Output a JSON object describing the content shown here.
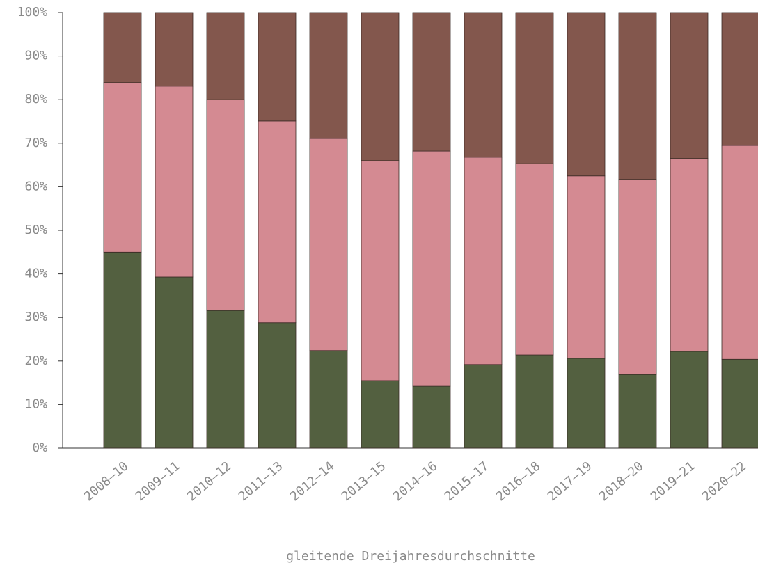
{
  "chart_data": {
    "type": "bar",
    "stacked": true,
    "x_label": "gleitende Dreijahresdurchschnitte",
    "categories": [
      "2008–10",
      "2009–11",
      "2010–12",
      "2011–13",
      "2012–14",
      "2013–15",
      "2014–16",
      "2015–17",
      "2016–18",
      "2017–19",
      "2018–20",
      "2019–21",
      "2020–22"
    ],
    "series": [
      {
        "color": "#536040",
        "values": [
          45.0,
          39.3,
          31.6,
          28.8,
          22.4,
          15.5,
          14.2,
          19.2,
          21.4,
          20.6,
          16.9,
          22.2,
          20.4
        ]
      },
      {
        "color": "#d48a92",
        "values": [
          38.9,
          43.8,
          48.4,
          46.3,
          48.7,
          50.5,
          54.0,
          47.6,
          43.9,
          41.9,
          44.8,
          44.3,
          49.1
        ]
      },
      {
        "color": "#83574d",
        "values": [
          16.1,
          16.9,
          20.0,
          24.9,
          28.9,
          34.0,
          31.8,
          33.2,
          34.7,
          37.5,
          38.3,
          33.5,
          30.5
        ]
      }
    ],
    "ylim": [
      0,
      100
    ],
    "yticks": [
      {
        "value": 0,
        "label": "0%"
      },
      {
        "value": 10,
        "label": "10%"
      },
      {
        "value": 20,
        "label": "20%"
      },
      {
        "value": 30,
        "label": "30%"
      },
      {
        "value": 40,
        "label": "40%"
      },
      {
        "value": 50,
        "label": "50%"
      },
      {
        "value": 60,
        "label": "60%"
      },
      {
        "value": 70,
        "label": "70%"
      },
      {
        "value": 80,
        "label": "80%"
      },
      {
        "value": 90,
        "label": "90%"
      },
      {
        "value": 100,
        "label": "100%"
      }
    ],
    "grid": false
  }
}
